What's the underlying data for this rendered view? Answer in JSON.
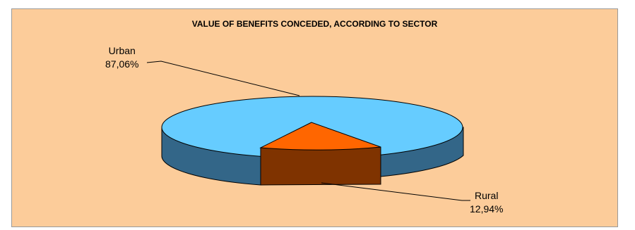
{
  "chart_data": {
    "type": "pie",
    "title": "VALUE OF BENEFITS CONCEDED, ACCORDING TO SECTOR",
    "slices": [
      {
        "label": "Urban",
        "value": 87.06,
        "value_label": "87,06%",
        "color": "#66ccff",
        "side_color": "#336688"
      },
      {
        "label": "Rural",
        "value": 12.94,
        "value_label": "12,94%",
        "color": "#ff6600",
        "side_color": "#7f3300"
      }
    ],
    "legend": "none",
    "style": "3d-exploded-slice"
  },
  "colors": {
    "background": "#fccc9a",
    "border": "#9a9a9a"
  }
}
